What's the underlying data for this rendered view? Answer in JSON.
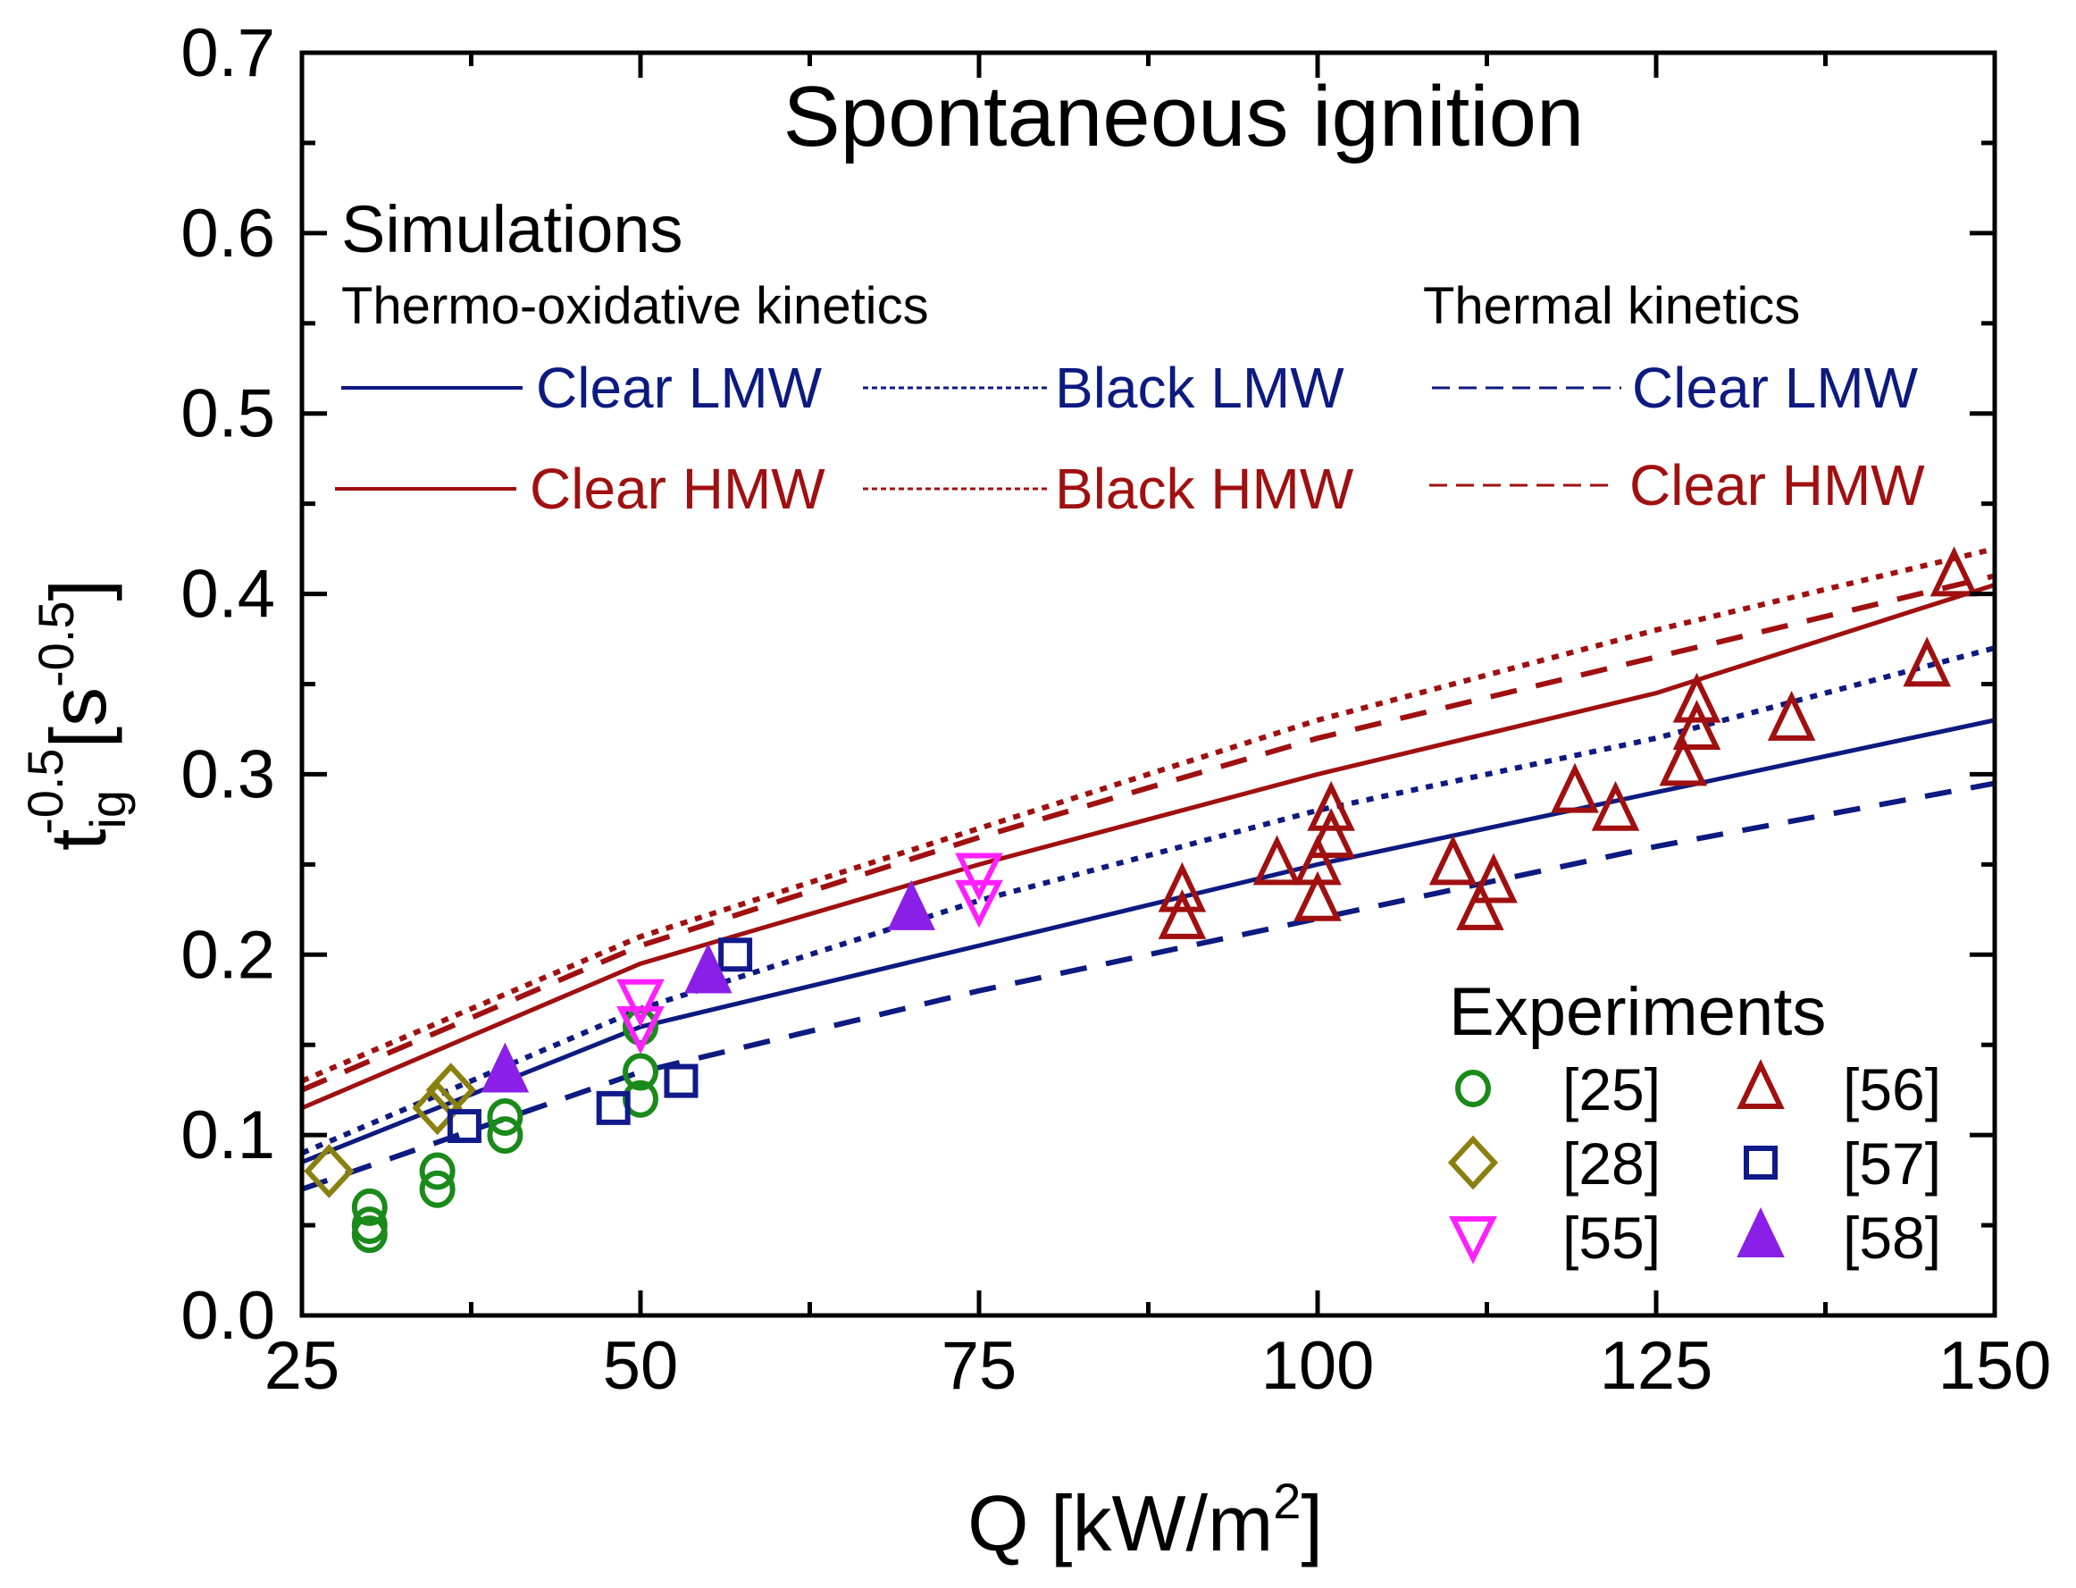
{
  "chart_data": {
    "type": "scatter",
    "title": "Spontaneous ignition",
    "xlabel": "Q [kW/m",
    "xlabel_sup": "2",
    "xlabel_end": "]",
    "ylabel_main": "t",
    "ylabel_sub": "ig",
    "ylabel_sup": "-0.5",
    "ylabel_unit": "[s",
    "ylabel_unit_sup": "-0.5",
    "ylabel_end": "]",
    "xlim": [
      25,
      150
    ],
    "ylim": [
      0,
      0.7
    ],
    "xticks": [
      "25",
      "50",
      "75",
      "100",
      "125",
      "150"
    ],
    "yticks": [
      "0.0",
      "0.1",
      "0.2",
      "0.3",
      "0.4",
      "0.5",
      "0.6",
      "0.7"
    ],
    "grid": false,
    "legend": {
      "simulations_title": "Simulations",
      "thermo_oxidative_title": "Thermo-oxidative kinetics",
      "thermal_title": "Thermal kinetics",
      "experiments_title": "Experiments"
    },
    "colors": {
      "blue": "#0d1a80",
      "red": "#a01010",
      "green": "#1a8a1a",
      "olive": "#8a8010",
      "magenta": "#ff20ff",
      "purple": "#8a20e8",
      "square": "#101a8a"
    },
    "line_series": [
      {
        "name": "Clear LMW",
        "group": "thermo-oxidative",
        "style": "solid",
        "color": "#0d1a80",
        "x": [
          25,
          50,
          75,
          100,
          125,
          150
        ],
        "y": [
          0.085,
          0.16,
          0.205,
          0.25,
          0.29,
          0.33
        ]
      },
      {
        "name": "Black LMW",
        "group": "thermo-oxidative",
        "style": "dotted",
        "color": "#0d1a80",
        "x": [
          25,
          50,
          75,
          100,
          125,
          150
        ],
        "y": [
          0.09,
          0.17,
          0.23,
          0.28,
          0.32,
          0.37
        ]
      },
      {
        "name": "Clear LMW",
        "group": "thermal",
        "style": "dashed",
        "color": "#0d1a80",
        "x": [
          25,
          50,
          75,
          100,
          125,
          150
        ],
        "y": [
          0.07,
          0.135,
          0.18,
          0.22,
          0.26,
          0.295
        ]
      },
      {
        "name": "Clear HMW",
        "group": "thermo-oxidative",
        "style": "solid",
        "color": "#a01010",
        "x": [
          25,
          50,
          75,
          100,
          125,
          150
        ],
        "y": [
          0.115,
          0.195,
          0.25,
          0.3,
          0.345,
          0.405
        ]
      },
      {
        "name": "Black HMW",
        "group": "thermo-oxidative",
        "style": "dotted",
        "color": "#a01010",
        "x": [
          25,
          50,
          75,
          100,
          125,
          150
        ],
        "y": [
          0.13,
          0.21,
          0.27,
          0.33,
          0.38,
          0.425
        ]
      },
      {
        "name": "Clear HMW",
        "group": "thermal",
        "style": "dashed",
        "color": "#a01010",
        "x": [
          25,
          50,
          75,
          100,
          125,
          150
        ],
        "y": [
          0.125,
          0.205,
          0.265,
          0.32,
          0.365,
          0.41
        ]
      }
    ],
    "scatter_series": [
      {
        "name": "[25]",
        "marker": "circle",
        "color": "#1a8a1a",
        "points": [
          [
            30,
            0.045
          ],
          [
            30,
            0.05
          ],
          [
            30,
            0.06
          ],
          [
            35,
            0.07
          ],
          [
            35,
            0.08
          ],
          [
            40,
            0.1
          ],
          [
            40,
            0.11
          ],
          [
            50,
            0.12
          ],
          [
            50,
            0.135
          ],
          [
            50,
            0.16
          ]
        ]
      },
      {
        "name": "[28]",
        "marker": "diamond",
        "color": "#8a8010",
        "points": [
          [
            27,
            0.08
          ],
          [
            35,
            0.115
          ],
          [
            36,
            0.125
          ]
        ]
      },
      {
        "name": "[55]",
        "marker": "triangle-down",
        "color": "#ff20ff",
        "points": [
          [
            50,
            0.16
          ],
          [
            50,
            0.175
          ],
          [
            75,
            0.23
          ],
          [
            75,
            0.245
          ]
        ]
      },
      {
        "name": "[56]",
        "marker": "triangle-up",
        "color": "#a01010",
        "points": [
          [
            90,
            0.22
          ],
          [
            90,
            0.235
          ],
          [
            97,
            0.25
          ],
          [
            100,
            0.23
          ],
          [
            100,
            0.25
          ],
          [
            101,
            0.265
          ],
          [
            101,
            0.28
          ],
          [
            110,
            0.25
          ],
          [
            112,
            0.225
          ],
          [
            113,
            0.24
          ],
          [
            119,
            0.29
          ],
          [
            122,
            0.28
          ],
          [
            127,
            0.305
          ],
          [
            128,
            0.325
          ],
          [
            128,
            0.34
          ],
          [
            135,
            0.33
          ],
          [
            145,
            0.36
          ],
          [
            147,
            0.41
          ]
        ]
      },
      {
        "name": "[57]",
        "marker": "square",
        "color": "#101a8a",
        "points": [
          [
            37,
            0.105
          ],
          [
            48,
            0.115
          ],
          [
            53,
            0.13
          ],
          [
            57,
            0.2
          ]
        ]
      },
      {
        "name": "[58]",
        "marker": "triangle-up-filled",
        "color": "#8a20e8",
        "points": [
          [
            40,
            0.135
          ],
          [
            55,
            0.19
          ],
          [
            70,
            0.225
          ]
        ]
      }
    ]
  }
}
